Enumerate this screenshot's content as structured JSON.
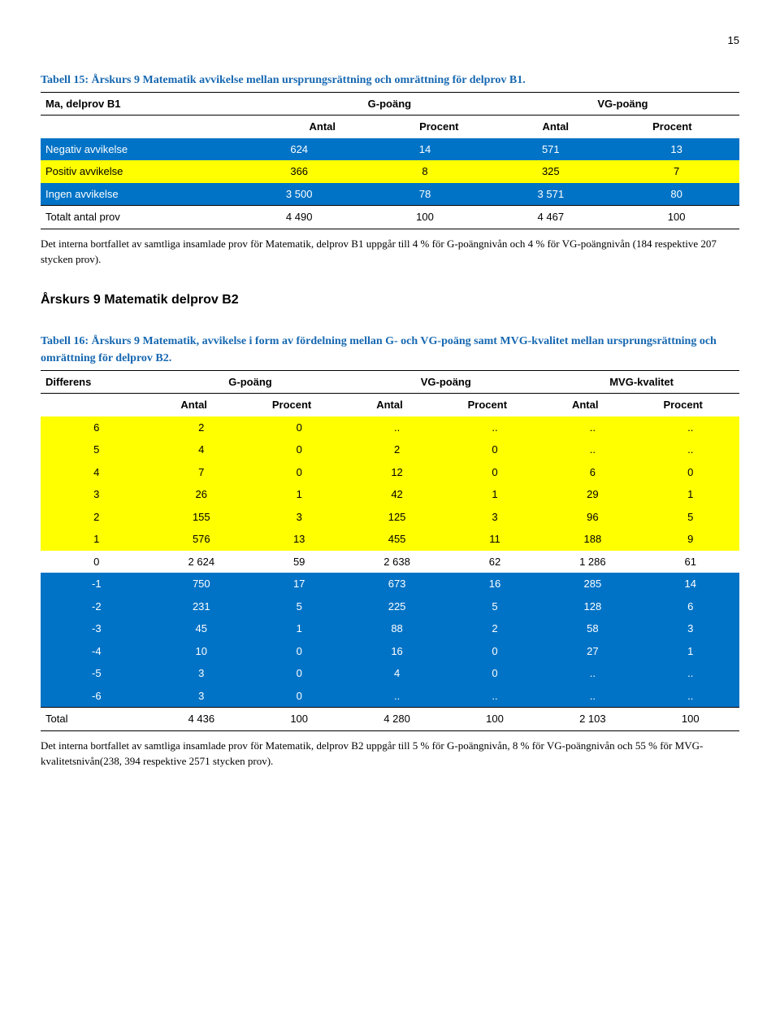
{
  "page_number": "15",
  "table15": {
    "caption": "Tabell 15: Årskurs 9 Matematik avvikelse mellan ursprungsrättning och omrättning för delprov B1.",
    "header": {
      "row_label": "Ma, delprov B1",
      "group1": "G-poäng",
      "group2": "VG-poäng"
    },
    "subheader": {
      "c1": "Antal",
      "c2": "Procent",
      "c3": "Antal",
      "c4": "Procent"
    },
    "rows": [
      {
        "label": "Negativ avvikelse",
        "c1": "624",
        "c2": "14",
        "c3": "571",
        "c4": "13",
        "class": "blue-row"
      },
      {
        "label": "Positiv avvikelse",
        "c1": "366",
        "c2": "8",
        "c3": "325",
        "c4": "7",
        "class": "yellow-row"
      },
      {
        "label": "Ingen avvikelse",
        "c1": "3 500",
        "c2": "78",
        "c3": "3 571",
        "c4": "80",
        "class": "blue-row"
      }
    ],
    "total": {
      "label": "Totalt antal prov",
      "c1": "4 490",
      "c2": "100",
      "c3": "4 467",
      "c4": "100"
    },
    "note": "Det interna bortfallet av samtliga insamlade prov för Matematik, delprov B1 uppgår till 4 % för G-poängnivån och 4 % för VG-poängnivån (184 respektive 207 stycken prov)."
  },
  "section_title": "Årskurs 9 Matematik delprov B2",
  "table16": {
    "caption": "Tabell 16: Årskurs 9 Matematik, avvikelse i form av fördelning mellan G- och VG-poäng samt MVG-kvalitet mellan ursprungsrättning och omrättning för delprov B2.",
    "header": {
      "row_label": "Differens",
      "g1": "G-poäng",
      "g2": "VG-poäng",
      "g3": "MVG-kvalitet"
    },
    "subheader": {
      "c1": "Antal",
      "c2": "Procent",
      "c3": "Antal",
      "c4": "Procent",
      "c5": "Antal",
      "c6": "Procent"
    },
    "rows": [
      {
        "label": "6",
        "c1": "2",
        "c2": "0",
        "c3": "..",
        "c4": "..",
        "c5": "..",
        "c6": "..",
        "class": "yellow-row"
      },
      {
        "label": "5",
        "c1": "4",
        "c2": "0",
        "c3": "2",
        "c4": "0",
        "c5": "..",
        "c6": "..",
        "class": "yellow-row"
      },
      {
        "label": "4",
        "c1": "7",
        "c2": "0",
        "c3": "12",
        "c4": "0",
        "c5": "6",
        "c6": "0",
        "class": "yellow-row"
      },
      {
        "label": "3",
        "c1": "26",
        "c2": "1",
        "c3": "42",
        "c4": "1",
        "c5": "29",
        "c6": "1",
        "class": "yellow-row"
      },
      {
        "label": "2",
        "c1": "155",
        "c2": "3",
        "c3": "125",
        "c4": "3",
        "c5": "96",
        "c6": "5",
        "class": "yellow-row"
      },
      {
        "label": "1",
        "c1": "576",
        "c2": "13",
        "c3": "455",
        "c4": "11",
        "c5": "188",
        "c6": "9",
        "class": "yellow-row"
      },
      {
        "label": "0",
        "c1": "2 624",
        "c2": "59",
        "c3": "2 638",
        "c4": "62",
        "c5": "1 286",
        "c6": "61",
        "class": ""
      },
      {
        "label": "-1",
        "c1": "750",
        "c2": "17",
        "c3": "673",
        "c4": "16",
        "c5": "285",
        "c6": "14",
        "class": "blue-row"
      },
      {
        "label": "-2",
        "c1": "231",
        "c2": "5",
        "c3": "225",
        "c4": "5",
        "c5": "128",
        "c6": "6",
        "class": "blue-row"
      },
      {
        "label": "-3",
        "c1": "45",
        "c2": "1",
        "c3": "88",
        "c4": "2",
        "c5": "58",
        "c6": "3",
        "class": "blue-row"
      },
      {
        "label": "-4",
        "c1": "10",
        "c2": "0",
        "c3": "16",
        "c4": "0",
        "c5": "27",
        "c6": "1",
        "class": "blue-row"
      },
      {
        "label": "-5",
        "c1": "3",
        "c2": "0",
        "c3": "4",
        "c4": "0",
        "c5": "..",
        "c6": "..",
        "class": "blue-row"
      },
      {
        "label": "-6",
        "c1": "3",
        "c2": "0",
        "c3": "..",
        "c4": "..",
        "c5": "..",
        "c6": "..",
        "class": "blue-row"
      }
    ],
    "total": {
      "label": "Total",
      "c1": "4 436",
      "c2": "100",
      "c3": "4 280",
      "c4": "100",
      "c5": "2 103",
      "c6": "100"
    },
    "note": "Det interna bortfallet av samtliga insamlade prov för Matematik, delprov B2 uppgår till 5 % för G-poängnivån, 8 % för VG-poängnivån och 55 % för MVG-kvalitetsnivån(238, 394 respektive 2571 stycken prov)."
  }
}
